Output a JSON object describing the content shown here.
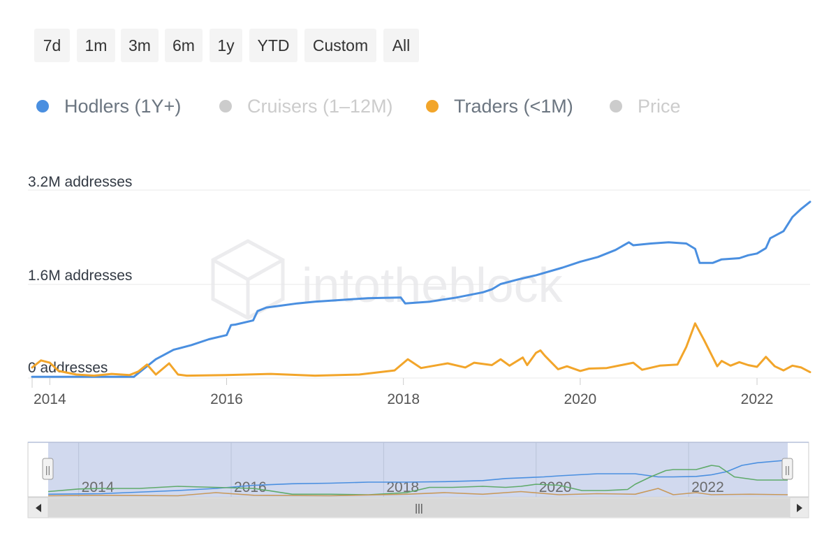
{
  "range_buttons": [
    "7d",
    "1m",
    "3m",
    "6m",
    "1y",
    "YTD",
    "Custom",
    "All"
  ],
  "legend": [
    {
      "label": "Hodlers (1Y+)",
      "color": "#4a8fe0",
      "active": true
    },
    {
      "label": "Cruisers (1–12M)",
      "color": "#cccccc",
      "active": false
    },
    {
      "label": "Traders (<1M)",
      "color": "#f2a52a",
      "active": true
    },
    {
      "label": "Price",
      "color": "#cccccc",
      "active": false
    }
  ],
  "watermark": "intotheblock",
  "chart_data": {
    "type": "line",
    "title": "",
    "xlabel": "",
    "ylabel": "",
    "y_tick_labels": [
      "0 addresses",
      "1.6M addresses",
      "3.2M addresses"
    ],
    "y_ticks": [
      0,
      1600000,
      3200000
    ],
    "ylim": [
      0,
      3200000
    ],
    "xlim": [
      2013.8,
      2022.6
    ],
    "x_ticks": [
      2014,
      2016,
      2018,
      2020,
      2022
    ],
    "x_tick_labels": [
      "2014",
      "2016",
      "2018",
      "2020",
      "2022"
    ],
    "grid": true,
    "legend_position": "top-left",
    "series": [
      {
        "name": "Hodlers (1Y+)",
        "color": "#4a8fe0",
        "x": [
          2013.8,
          2014.0,
          2014.5,
          2014.95,
          2015.05,
          2015.2,
          2015.4,
          2015.6,
          2015.8,
          2016.0,
          2016.05,
          2016.1,
          2016.3,
          2016.35,
          2016.45,
          2016.6,
          2016.8,
          2017.0,
          2017.3,
          2017.6,
          2017.97,
          2018.02,
          2018.3,
          2018.6,
          2018.9,
          2019.0,
          2019.1,
          2019.3,
          2019.5,
          2019.8,
          2020.0,
          2020.2,
          2020.4,
          2020.55,
          2020.6,
          2020.8,
          2021.0,
          2021.2,
          2021.3,
          2021.35,
          2021.5,
          2021.6,
          2021.8,
          2021.9,
          2022.0,
          2022.1,
          2022.15,
          2022.2,
          2022.3,
          2022.4,
          2022.5,
          2022.6
        ],
        "y": [
          20000,
          20000,
          20000,
          20000,
          140000,
          320000,
          480000,
          560000,
          660000,
          730000,
          900000,
          910000,
          980000,
          1140000,
          1200000,
          1230000,
          1270000,
          1300000,
          1330000,
          1360000,
          1370000,
          1270000,
          1300000,
          1370000,
          1460000,
          1510000,
          1600000,
          1680000,
          1750000,
          1880000,
          1980000,
          2060000,
          2180000,
          2310000,
          2260000,
          2290000,
          2310000,
          2290000,
          2200000,
          1960000,
          1960000,
          2020000,
          2040000,
          2090000,
          2120000,
          2210000,
          2380000,
          2420000,
          2500000,
          2740000,
          2880000,
          3000000
        ]
      },
      {
        "name": "Traders (<1M)",
        "color": "#f2a52a",
        "x": [
          2013.8,
          2013.9,
          2014.0,
          2014.1,
          2014.3,
          2014.5,
          2014.7,
          2014.9,
          2015.0,
          2015.1,
          2015.2,
          2015.35,
          2015.45,
          2015.55,
          2016.0,
          2016.5,
          2017.0,
          2017.5,
          2017.9,
          2018.05,
          2018.2,
          2018.5,
          2018.7,
          2018.8,
          2019.0,
          2019.1,
          2019.2,
          2019.35,
          2019.4,
          2019.5,
          2019.55,
          2019.6,
          2019.75,
          2019.85,
          2020.0,
          2020.1,
          2020.3,
          2020.6,
          2020.7,
          2020.9,
          2021.1,
          2021.2,
          2021.3,
          2021.4,
          2021.55,
          2021.6,
          2021.7,
          2021.8,
          2021.9,
          2022.0,
          2022.1,
          2022.2,
          2022.3,
          2022.4,
          2022.5,
          2022.6
        ],
        "y": [
          180000,
          300000,
          260000,
          120000,
          60000,
          40000,
          70000,
          50000,
          110000,
          230000,
          60000,
          250000,
          60000,
          40000,
          50000,
          70000,
          40000,
          60000,
          130000,
          320000,
          170000,
          250000,
          180000,
          260000,
          220000,
          320000,
          210000,
          350000,
          220000,
          430000,
          470000,
          380000,
          150000,
          200000,
          120000,
          160000,
          170000,
          260000,
          140000,
          210000,
          230000,
          530000,
          930000,
          650000,
          200000,
          290000,
          210000,
          270000,
          220000,
          190000,
          360000,
          200000,
          130000,
          210000,
          180000,
          100000
        ]
      }
    ],
    "navigator": {
      "x_tick_labels": [
        "2014",
        "2016",
        "2018",
        "2020",
        "2022"
      ],
      "handle_glyph": "||",
      "scroll_glyph": "|||",
      "series": [
        {
          "name": "Hodlers (1Y+)",
          "color": "#4a8fe0",
          "x": [
            2013.3,
            2014.0,
            2015.0,
            2015.5,
            2016.0,
            2016.5,
            2017.0,
            2017.5,
            2018.0,
            2018.5,
            2019.0,
            2019.3,
            2019.8,
            2020.0,
            2020.5,
            2021.0,
            2021.3,
            2021.5,
            2021.8,
            2022.0,
            2022.2,
            2022.4,
            2022.6,
            2023.0
          ],
          "y": [
            5,
            6,
            12,
            16,
            22,
            25,
            26,
            28,
            28,
            29,
            31,
            35,
            38,
            40,
            44,
            44,
            38,
            38,
            39,
            42,
            48,
            60,
            65,
            70
          ]
        },
        {
          "name": "Cruisers (1–12M)",
          "color": "#5faa6a",
          "x": [
            2013.3,
            2013.7,
            2014.0,
            2014.5,
            2015.0,
            2015.5,
            2016.0,
            2016.5,
            2017.0,
            2017.5,
            2018.0,
            2018.3,
            2018.6,
            2019.0,
            2019.3,
            2019.5,
            2019.7,
            2020.0,
            2020.3,
            2020.6,
            2020.9,
            2021.0,
            2021.2,
            2021.4,
            2021.5,
            2021.8,
            2022.0,
            2022.1,
            2022.3,
            2022.6,
            2023.0
          ],
          "y": [
            10,
            15,
            16,
            16,
            20,
            18,
            16,
            5,
            5,
            4,
            8,
            18,
            18,
            20,
            18,
            20,
            24,
            22,
            12,
            12,
            14,
            24,
            38,
            50,
            52,
            52,
            60,
            58,
            38,
            32,
            32
          ]
        },
        {
          "name": "Traders (<1M)",
          "color": "#c8995a",
          "x": [
            2013.3,
            2014.0,
            2015.0,
            2015.5,
            2016.0,
            2017.0,
            2018.0,
            2018.5,
            2019.0,
            2019.5,
            2020.0,
            2020.5,
            2021.0,
            2021.3,
            2021.5,
            2021.8,
            2022.0,
            2022.5,
            2023.0
          ],
          "y": [
            2,
            3,
            2,
            8,
            3,
            2,
            5,
            8,
            5,
            10,
            4,
            6,
            5,
            16,
            4,
            8,
            4,
            5,
            4
          ]
        }
      ]
    }
  }
}
